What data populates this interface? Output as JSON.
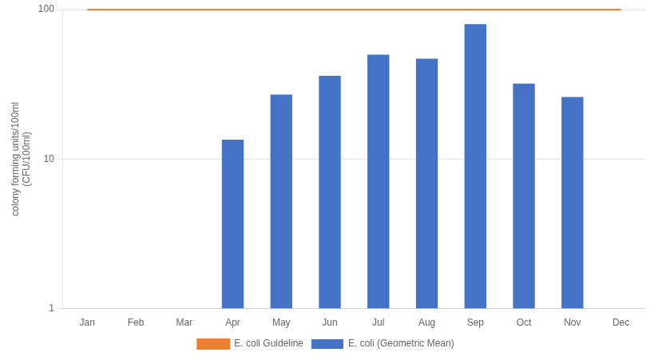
{
  "chart_data": {
    "type": "bar",
    "categories": [
      "Jan",
      "Feb",
      "Mar",
      "Apr",
      "May",
      "Jun",
      "Jul",
      "Aug",
      "Sep",
      "Oct",
      "Nov",
      "Dec"
    ],
    "series": [
      {
        "name": "E. coli (Geometric Mean)",
        "type": "bar",
        "color": "#4472C4",
        "values": [
          null,
          null,
          null,
          13.5,
          27.0,
          36.0,
          50.0,
          47.0,
          80.0,
          32.0,
          26.0,
          null
        ]
      },
      {
        "name": "E. coli Guideline",
        "type": "line",
        "color": "#ED7D31",
        "values": [
          100,
          100,
          100,
          100,
          100,
          100,
          100,
          100,
          100,
          100,
          100,
          100
        ]
      }
    ],
    "ylabel": "colony forming units/100ml\n(CFU/100ml)",
    "ylim": [
      1,
      100
    ],
    "yticks": [
      1,
      10,
      100
    ],
    "log": "y",
    "grid": true,
    "legend": "bottom"
  }
}
